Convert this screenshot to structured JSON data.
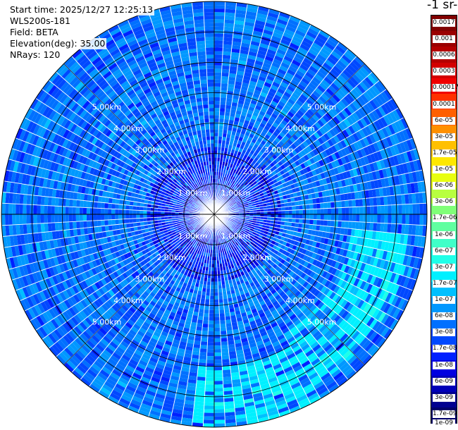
{
  "info": {
    "start_time": "Start time: 2025/12/27 12:25:13",
    "instrument": "WLS200s-181",
    "field": "Field: BETA",
    "elevation": "Elevation(deg): 35.00",
    "nrays": "NRays: 120"
  },
  "colorbar": {
    "unit_title": "-1 sr-",
    "labels": [
      "0.0017",
      "0.001",
      "0.0006",
      "0.0003",
      "0.00017",
      "0.0001",
      "6e-05",
      "3e-05",
      "1.7e-05",
      "1e-05",
      "6e-06",
      "3e-06",
      "1.7e-06",
      "1e-06",
      "6e-07",
      "3e-07",
      "1.7e-07",
      "1e-07",
      "6e-08",
      "3e-08",
      "1.7e-08",
      "1e-08",
      "6e-09",
      "3e-09",
      "1.7e-09",
      "1e-09"
    ],
    "colors": [
      "#800000",
      "#9a0000",
      "#b40000",
      "#d20000",
      "#f00000",
      "#ff3000",
      "#ff6000",
      "#ff9000",
      "#ffc000",
      "#ffe800",
      "#e8ff10",
      "#b8ff40",
      "#80ff78",
      "#60ffa0",
      "#40ffc8",
      "#20ffe8",
      "#00f0ff",
      "#00c0ff",
      "#0098ff",
      "#0070ff",
      "#0048ff",
      "#0020ff",
      "#0000e0",
      "#0000b8",
      "#000090",
      "#00006a"
    ]
  },
  "chart_data": {
    "type": "heatmap",
    "projection": "polar-ppi",
    "field": "BETA",
    "elevation_deg": 35.0,
    "n_rays": 120,
    "range_rings": [
      "1.00km",
      "2.00km",
      "3.00km",
      "4.00km",
      "5.00km"
    ],
    "ring_label_km": [
      1,
      2,
      3,
      4,
      5
    ],
    "max_range_km": 7.0,
    "scale": "log",
    "vmin": 1e-09,
    "vmax": 0.0017,
    "dominant_value_range": [
      3e-09,
      1.7e-07
    ],
    "high_value_regions": [
      {
        "azimuth_deg": [
          150,
          185
        ],
        "range_km": [
          5.0,
          7.0
        ],
        "approx_value": 1.7e-07
      },
      {
        "azimuth_deg": [
          95,
          150
        ],
        "range_km": [
          4.5,
          6.5
        ],
        "approx_value": 1.7e-07
      }
    ]
  }
}
